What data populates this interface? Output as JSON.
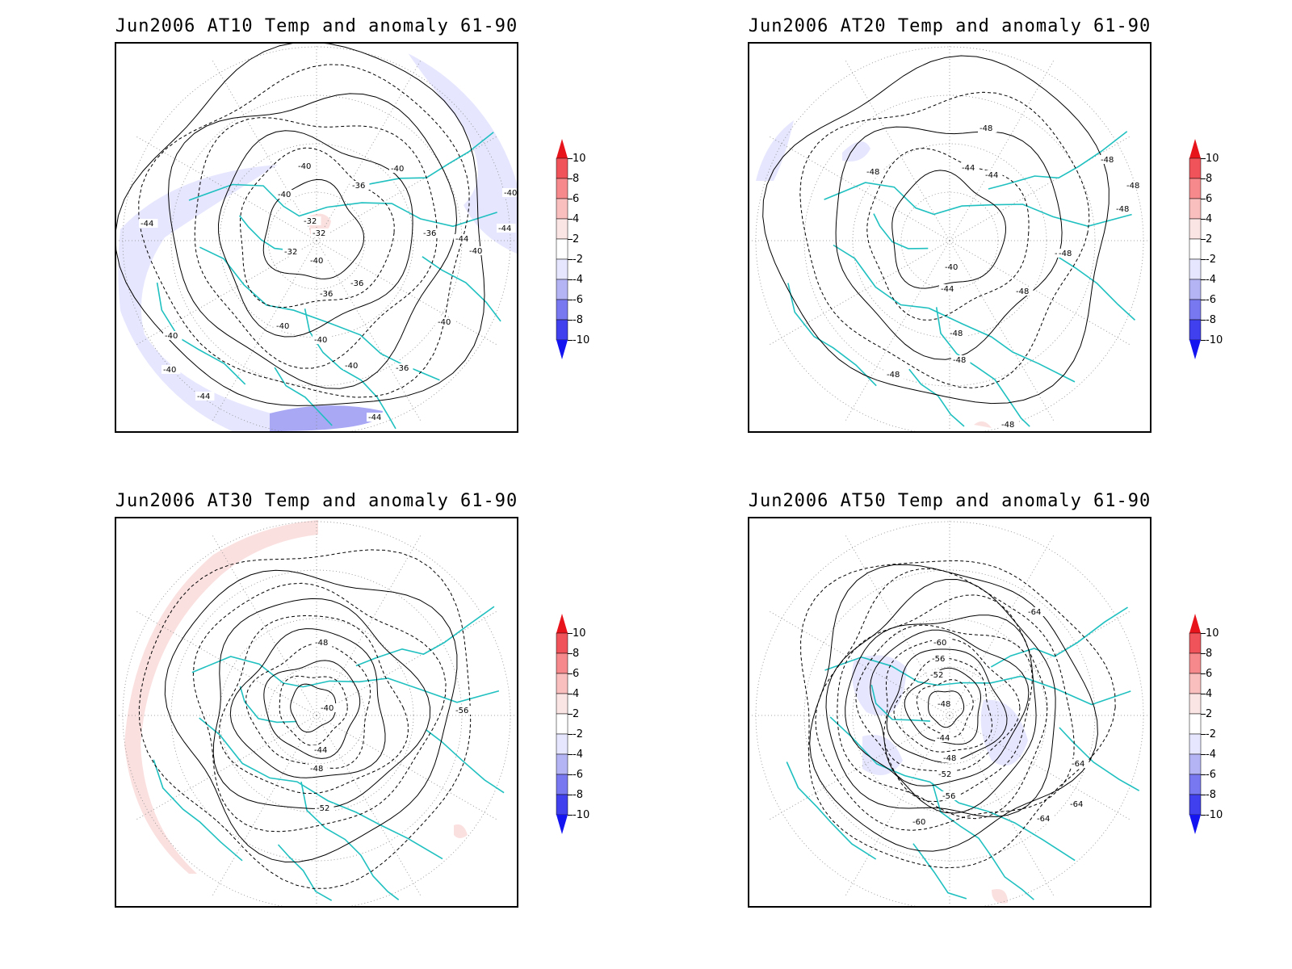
{
  "panels": [
    {
      "title": "Jun2006 AT10 Temp and anomaly 61-90",
      "contour_labels": [
        "-40",
        "-40",
        "-40",
        "-40",
        "-44",
        "-44",
        "-40",
        "-44",
        "-36",
        "-32",
        "-32",
        "-32",
        "-36",
        "-40",
        "-36",
        "-36",
        "-40",
        "-40",
        "-40",
        "-40",
        "-40",
        "-44",
        "-40",
        "-36",
        "-44",
        "-40"
      ],
      "anomaly_shading": [
        {
          "region": "outer-ring-west",
          "color": "#e6e6ff"
        },
        {
          "region": "north-pacific",
          "color": "#e6e6ff"
        },
        {
          "region": "south-pacific",
          "color": "#a8a8f5"
        },
        {
          "region": "arctic-ocean",
          "color": "#fbe0e0"
        }
      ]
    },
    {
      "title": "Jun2006 AT20 Temp and anomaly 61-90",
      "contour_labels": [
        "-48",
        "-48",
        "-44",
        "-44",
        "-48",
        "-48",
        "-48",
        "-48",
        "-40",
        "-44",
        "-48",
        "-48",
        "-48",
        "-48",
        "-48",
        "-48"
      ],
      "anomaly_shading": [
        {
          "region": "west-edge",
          "color": "#e6e6ff"
        },
        {
          "region": "small-north",
          "color": "#e6e6ff"
        },
        {
          "region": "south-tip",
          "color": "#fbe0e0"
        }
      ]
    },
    {
      "title": "Jun2006 AT30 Temp and anomaly 61-90",
      "contour_labels": [
        "-48",
        "-40",
        "-44",
        "-48",
        "-52",
        "-56"
      ],
      "anomaly_shading": [
        {
          "region": "outer-arc-west",
          "color": "#fbe0e0"
        },
        {
          "region": "small-east",
          "color": "#fbe0e0"
        }
      ]
    },
    {
      "title": "Jun2006 AT50 Temp and anomaly 61-90",
      "contour_labels": [
        "-64",
        "-60",
        "-56",
        "-52",
        "-48",
        "-44",
        "-48",
        "-52",
        "-56",
        "-60",
        "-64",
        "-64",
        "-64"
      ],
      "anomaly_shading": [
        {
          "region": "north-america",
          "color": "#e6e6ff"
        },
        {
          "region": "europe",
          "color": "#e6e6ff"
        },
        {
          "region": "pacific",
          "color": "#e6e6ff"
        },
        {
          "region": "south",
          "color": "#fbe0e0"
        }
      ]
    }
  ],
  "colorbar": {
    "labels": [
      "10",
      "8",
      "6",
      "4",
      "2",
      "-2",
      "-4",
      "-6",
      "-8",
      "-10"
    ],
    "colors": [
      "#e8141c",
      "#f0545a",
      "#f5898b",
      "#f9bebe",
      "#fbe4e4",
      "#ffffff",
      "#e6e6ff",
      "#b4b4f5",
      "#7878f0",
      "#4040ee",
      "#1414f0"
    ]
  },
  "colors": {
    "coastline": "#20c0c0",
    "contour": "#000000",
    "graticule": "#888888"
  }
}
